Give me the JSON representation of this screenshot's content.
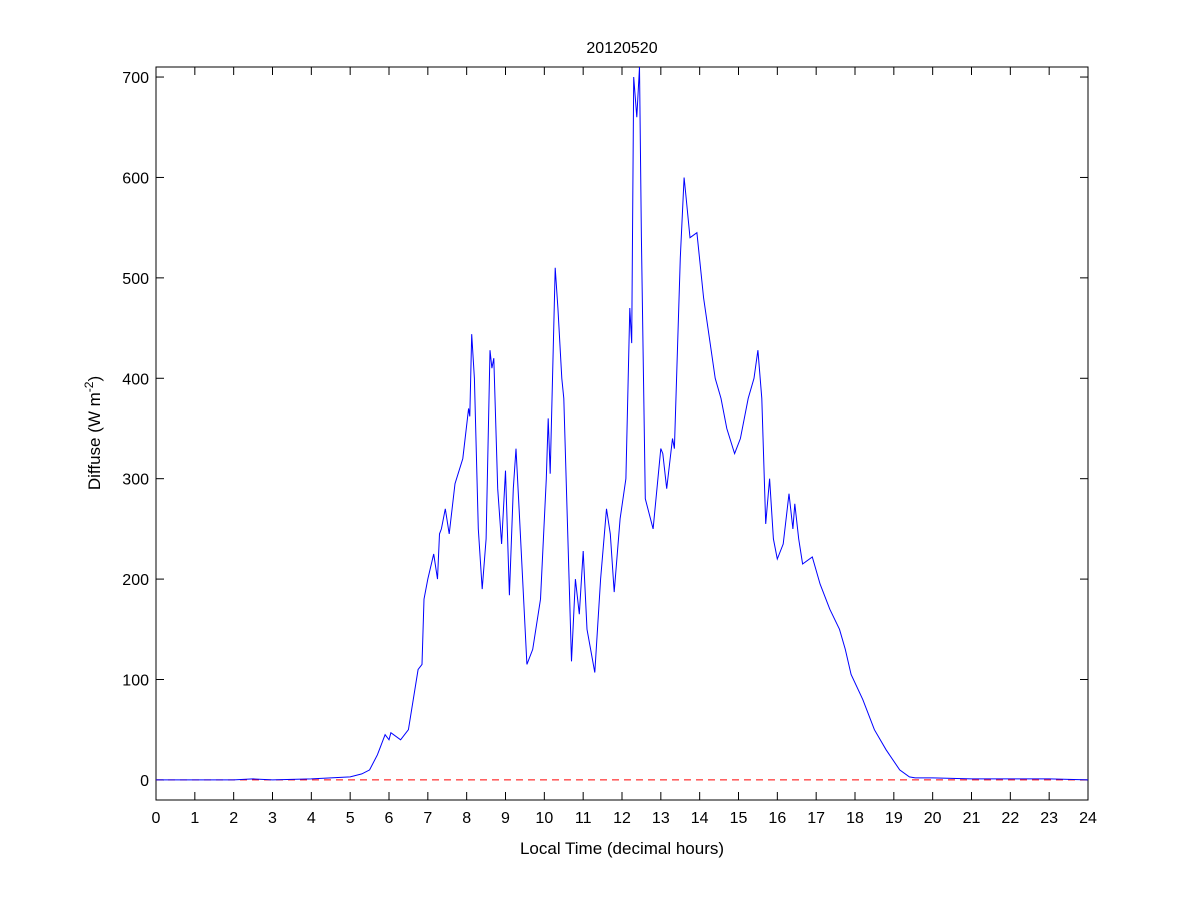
{
  "chart_data": {
    "type": "line",
    "title": "20120520",
    "xlabel": "Local Time (decimal hours)",
    "ylabel": "Diffuse (W m",
    "ylabel_superscript": "-2",
    "ylabel_suffix": ")",
    "xlim": [
      0,
      24
    ],
    "ylim": [
      -20,
      710
    ],
    "xticks": [
      0,
      1,
      2,
      3,
      4,
      5,
      6,
      7,
      8,
      9,
      10,
      11,
      12,
      13,
      14,
      15,
      16,
      17,
      18,
      19,
      20,
      21,
      22,
      23,
      24
    ],
    "yticks": [
      0,
      100,
      200,
      300,
      400,
      500,
      600,
      700
    ],
    "grid": false,
    "colors": {
      "series": "#0000ff",
      "zero_line": "#ff0000"
    },
    "reference_line": {
      "y": 0,
      "style": "dashed",
      "color": "#ff0000"
    },
    "series": [
      {
        "x": [
          0,
          2,
          2.5,
          3,
          4,
          4.5,
          5,
          5.3,
          5.5,
          5.7,
          5.9,
          6.0,
          6.05,
          6.3,
          6.5,
          6.75,
          6.85,
          6.9,
          7.0,
          7.15,
          7.25,
          7.3,
          7.35,
          7.45,
          7.55,
          7.7,
          7.9,
          8.05,
          8.08,
          8.13,
          8.2,
          8.3,
          8.4,
          8.5,
          8.6,
          8.65,
          8.7,
          8.8,
          8.9,
          9.0,
          9.1,
          9.2,
          9.27,
          9.35,
          9.55,
          9.7,
          9.9,
          10.05,
          10.1,
          10.15,
          10.28,
          10.35,
          10.45,
          10.5,
          10.6,
          10.7,
          10.8,
          10.9,
          11.0,
          11.1,
          11.3,
          11.45,
          11.6,
          11.7,
          11.8,
          11.95,
          12.1,
          12.2,
          12.25,
          12.3,
          12.38,
          12.45,
          12.5,
          12.6,
          12.8,
          13.0,
          13.05,
          13.15,
          13.3,
          13.35,
          13.5,
          13.6,
          13.65,
          13.75,
          13.93,
          14.1,
          14.25,
          14.4,
          14.55,
          14.7,
          14.9,
          15.05,
          15.25,
          15.4,
          15.5,
          15.6,
          15.7,
          15.8,
          15.9,
          16.0,
          16.15,
          16.3,
          16.4,
          16.45,
          16.55,
          16.65,
          16.9,
          17.1,
          17.35,
          17.6,
          17.75,
          17.9,
          18.2,
          18.5,
          18.8,
          19.15,
          19.4,
          19.55,
          20,
          21,
          22,
          23,
          24
        ],
        "y": [
          0,
          0,
          1,
          0,
          1,
          2,
          3,
          6,
          10,
          25,
          45,
          40,
          47,
          40,
          50,
          110,
          115,
          180,
          200,
          225,
          200,
          245,
          250,
          270,
          245,
          295,
          320,
          370,
          362,
          444,
          400,
          250,
          190,
          240,
          428,
          410,
          420,
          290,
          235,
          308,
          184,
          290,
          330,
          270,
          115,
          130,
          180,
          300,
          360,
          305,
          510,
          470,
          400,
          380,
          250,
          118,
          200,
          165,
          228,
          150,
          107,
          200,
          270,
          245,
          187,
          260,
          300,
          470,
          435,
          700,
          660,
          710,
          540,
          280,
          250,
          330,
          325,
          290,
          340,
          330,
          520,
          600,
          580,
          540,
          545,
          480,
          440,
          400,
          380,
          350,
          325,
          340,
          380,
          400,
          428,
          380,
          255,
          300,
          240,
          220,
          235,
          285,
          250,
          275,
          240,
          215,
          222,
          195,
          170,
          150,
          130,
          105,
          80,
          50,
          30,
          10,
          3,
          2,
          2,
          1,
          1,
          1,
          0
        ]
      }
    ]
  }
}
